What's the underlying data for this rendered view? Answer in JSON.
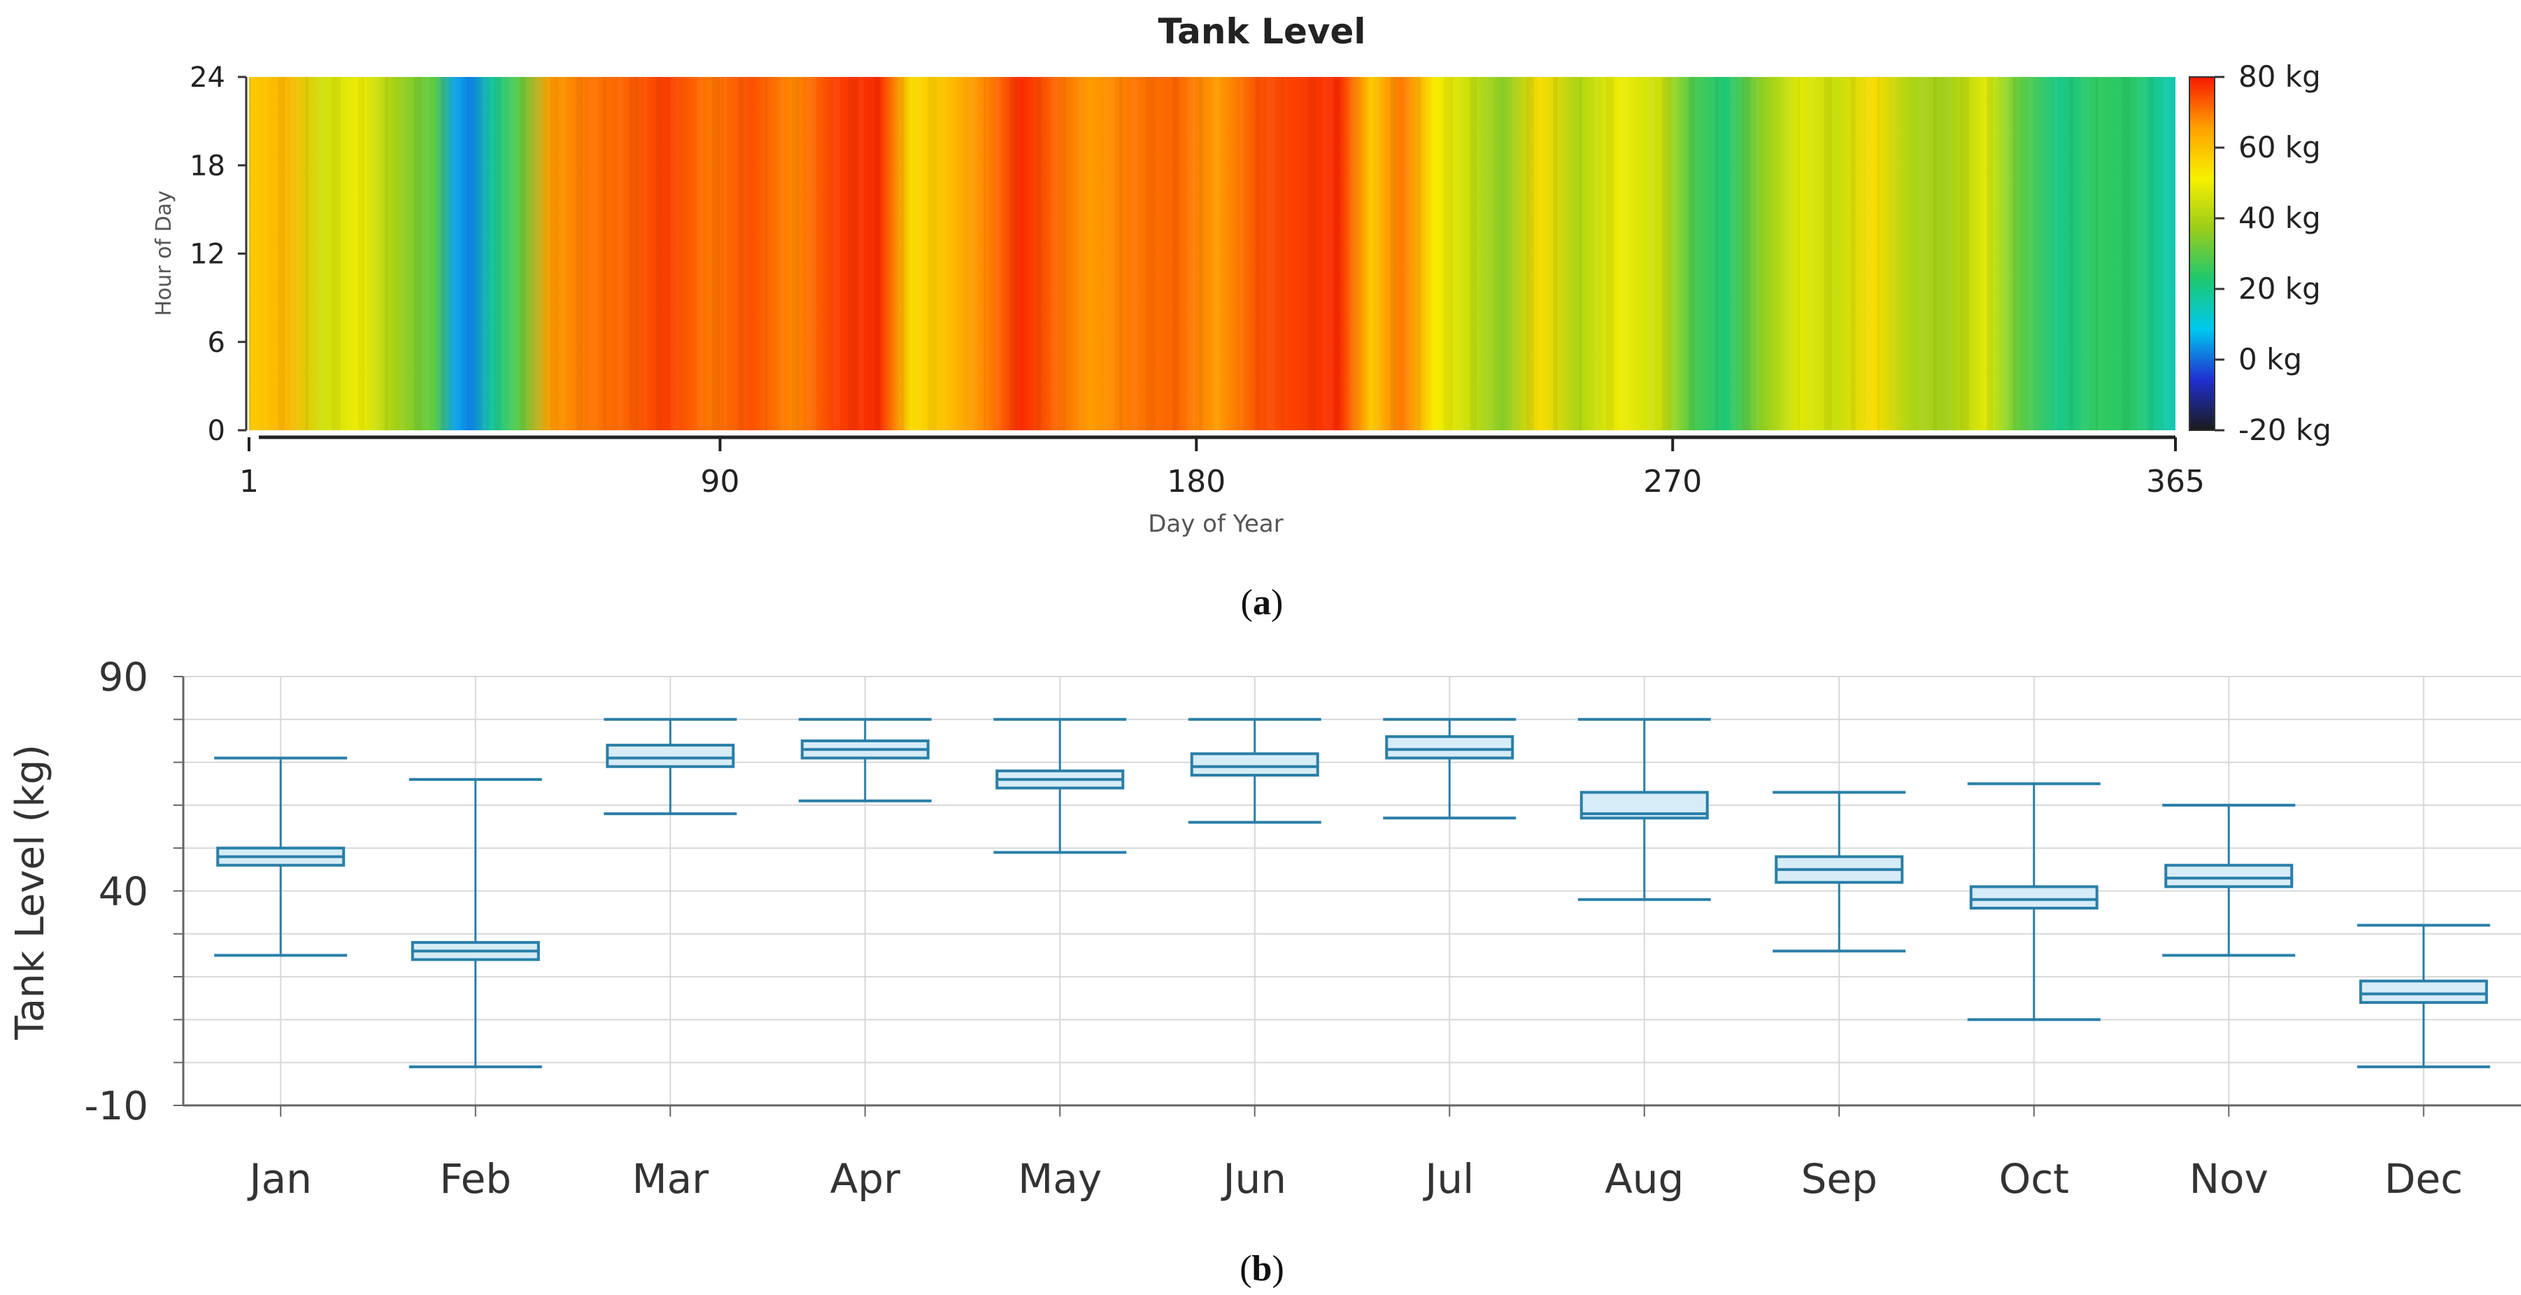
{
  "panel_labels": {
    "a": "a",
    "b": "b"
  },
  "chart_data": [
    {
      "type": "heatmap",
      "title": "Tank Level",
      "xlabel": "Day of Year",
      "ylabel": "Hour of Day",
      "xlim": [
        1,
        365
      ],
      "ylim": [
        0,
        24
      ],
      "xticks": [
        1,
        90,
        180,
        270,
        365
      ],
      "yticks": [
        0,
        6,
        12,
        18,
        24
      ],
      "colorbar": {
        "range": [
          -20,
          80
        ],
        "unit": "kg",
        "tick_values": [
          80,
          60,
          40,
          20,
          0,
          -20
        ],
        "tick_labels": [
          "80 kg",
          "60 kg",
          "40 kg",
          "20 kg",
          "0 kg",
          "-20 kg"
        ],
        "colors": [
          "#1a1a1a",
          "#1f2fd0",
          "#00c8f0",
          "#1ec86e",
          "#9acd1a",
          "#f8f000",
          "#ffa000",
          "#f81800"
        ]
      },
      "daily_profile": {
        "days": [
          1,
          8,
          15,
          22,
          29,
          36,
          40,
          43,
          47,
          52,
          58,
          65,
          72,
          80,
          88,
          96,
          104,
          112,
          120,
          126,
          133,
          140,
          147,
          153,
          160,
          168,
          176,
          184,
          192,
          200,
          207,
          213,
          219,
          225,
          231,
          238,
          245,
          252,
          260,
          268,
          274,
          280,
          287,
          294,
          301,
          308,
          315,
          322,
          329,
          336,
          343,
          350,
          357,
          365
        ],
        "values": [
          58,
          62,
          45,
          50,
          38,
          30,
          5,
          2,
          18,
          30,
          66,
          70,
          72,
          76,
          70,
          74,
          68,
          76,
          78,
          55,
          60,
          68,
          78,
          72,
          66,
          70,
          72,
          66,
          74,
          76,
          78,
          58,
          70,
          52,
          45,
          35,
          55,
          40,
          50,
          44,
          28,
          22,
          36,
          48,
          44,
          55,
          40,
          38,
          48,
          30,
          20,
          25,
          24,
          15
        ]
      }
    },
    {
      "type": "box",
      "ylabel": "Tank Level (kg)",
      "ylim": [
        -10,
        90
      ],
      "yticks": [
        -10,
        40,
        90
      ],
      "categories": [
        "Jan",
        "Feb",
        "Mar",
        "Apr",
        "May",
        "Jun",
        "Jul",
        "Aug",
        "Sep",
        "Oct",
        "Nov",
        "Dec"
      ],
      "boxes": [
        {
          "min": 25,
          "q1": 46,
          "median": 48,
          "q3": 50,
          "max": 71
        },
        {
          "min": -1,
          "q1": 24,
          "median": 26,
          "q3": 28,
          "max": 66
        },
        {
          "min": 58,
          "q1": 69,
          "median": 71,
          "q3": 74,
          "max": 80
        },
        {
          "min": 61,
          "q1": 71,
          "median": 73,
          "q3": 75,
          "max": 80
        },
        {
          "min": 49,
          "q1": 64,
          "median": 66,
          "q3": 68,
          "max": 80
        },
        {
          "min": 56,
          "q1": 67,
          "median": 69,
          "q3": 72,
          "max": 80
        },
        {
          "min": 57,
          "q1": 71,
          "median": 73,
          "q3": 76,
          "max": 80
        },
        {
          "min": 38,
          "q1": 57,
          "median": 58,
          "q3": 63,
          "max": 80
        },
        {
          "min": 26,
          "q1": 42,
          "median": 45,
          "q3": 48,
          "max": 63
        },
        {
          "min": 10,
          "q1": 36,
          "median": 38,
          "q3": 41,
          "max": 65
        },
        {
          "min": 25,
          "q1": 41,
          "median": 43,
          "q3": 46,
          "max": 60
        },
        {
          "min": -1,
          "q1": 14,
          "median": 16,
          "q3": 19,
          "max": 32
        }
      ]
    }
  ]
}
